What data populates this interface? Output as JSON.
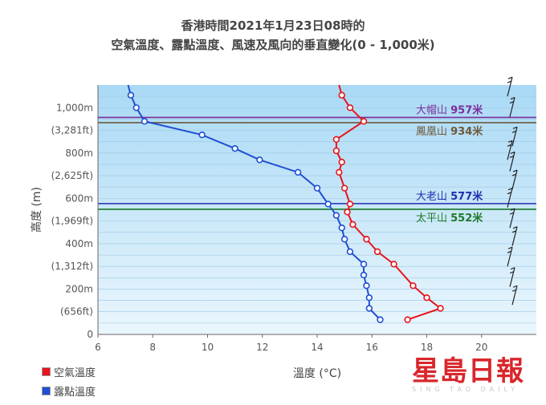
{
  "title": {
    "line1": "香港時間2021年1月23日08時的",
    "line2": "空氣溫度、露點溫度、風速及風向的垂直變化(0 - 1,000米)"
  },
  "colors": {
    "air_temp": "#e8151b",
    "dew_point": "#1f4fd1",
    "plot_bg_top": "#a9d9f5",
    "plot_bg_bottom": "#eaf6fd",
    "tai_mo_shan": "#1f2fb0",
    "tai_ping_shan": "#1c7a2a",
    "phoenix_mt": "#6e5a3a",
    "lantau_peak": "#7b2f9c"
  },
  "legend": [
    {
      "label": "空氣溫度",
      "color": "#e8151b"
    },
    {
      "label": "露點溫度",
      "color": "#1f4fd1"
    }
  ],
  "logo": {
    "main": "星島日報",
    "sub": "SING TAO DAILY"
  },
  "chart_data": {
    "type": "line",
    "xlabel": "溫度 (°C)",
    "ylabel": "高度 (m)",
    "xlim": [
      6,
      22
    ],
    "ylim": [
      0,
      1100
    ],
    "x_ticks": [
      6,
      8,
      10,
      12,
      14,
      16,
      18,
      20
    ],
    "y_ticks": [
      {
        "value": 0,
        "label": "0"
      },
      {
        "value": 100,
        "label": "(656ft)"
      },
      {
        "value": 200,
        "label": "200m"
      },
      {
        "value": 300,
        "label": "(1,312ft)"
      },
      {
        "value": 400,
        "label": "400m"
      },
      {
        "value": 500,
        "label": "(1,969ft)"
      },
      {
        "value": 600,
        "label": "600m"
      },
      {
        "value": 700,
        "label": "(2,625ft)"
      },
      {
        "value": 800,
        "label": "800m"
      },
      {
        "value": 900,
        "label": "(3,281ft)"
      },
      {
        "value": 1000,
        "label": "1,000m"
      }
    ],
    "grid": "horizontal",
    "series": [
      {
        "name": "空氣溫度",
        "points": [
          [
            17.3,
            65
          ],
          [
            18.5,
            115
          ],
          [
            18.0,
            162
          ],
          [
            17.5,
            215
          ],
          [
            16.8,
            310
          ],
          [
            16.2,
            365
          ],
          [
            15.8,
            420
          ],
          [
            15.3,
            485
          ],
          [
            15.1,
            540
          ],
          [
            15.2,
            575
          ],
          [
            15.0,
            645
          ],
          [
            14.8,
            715
          ],
          [
            14.9,
            760
          ],
          [
            14.7,
            810
          ],
          [
            14.7,
            860
          ],
          [
            15.7,
            940
          ],
          [
            15.2,
            1000
          ],
          [
            14.9,
            1055
          ],
          [
            14.8,
            1100
          ]
        ]
      },
      {
        "name": "露點溫度",
        "points": [
          [
            16.3,
            65
          ],
          [
            15.9,
            115
          ],
          [
            15.9,
            162
          ],
          [
            15.8,
            215
          ],
          [
            15.7,
            262
          ],
          [
            15.7,
            310
          ],
          [
            15.2,
            365
          ],
          [
            15.0,
            420
          ],
          [
            14.9,
            470
          ],
          [
            14.7,
            525
          ],
          [
            14.4,
            575
          ],
          [
            14.0,
            645
          ],
          [
            13.3,
            715
          ],
          [
            11.9,
            770
          ],
          [
            11.0,
            820
          ],
          [
            9.8,
            880
          ],
          [
            7.7,
            940
          ],
          [
            7.4,
            1000
          ],
          [
            7.2,
            1055
          ],
          [
            7.1,
            1100
          ]
        ]
      }
    ],
    "reference_lines": [
      {
        "name": "大帽山",
        "height_label": "957米",
        "value": 957,
        "color": "#7b2f9c"
      },
      {
        "name": "鳳凰山",
        "height_label": "934米",
        "value": 934,
        "color": "#6e5a3a"
      },
      {
        "name": "大老山",
        "height_label": "577米",
        "value": 577,
        "color": "#1f2fb0"
      },
      {
        "name": "太平山",
        "height_label": "552米",
        "value": 552,
        "color": "#1c7a2a"
      }
    ],
    "wind_barbs_heights": [
      1050,
      960,
      830,
      770,
      720,
      640,
      560,
      470,
      390,
      300,
      210,
      130
    ]
  }
}
